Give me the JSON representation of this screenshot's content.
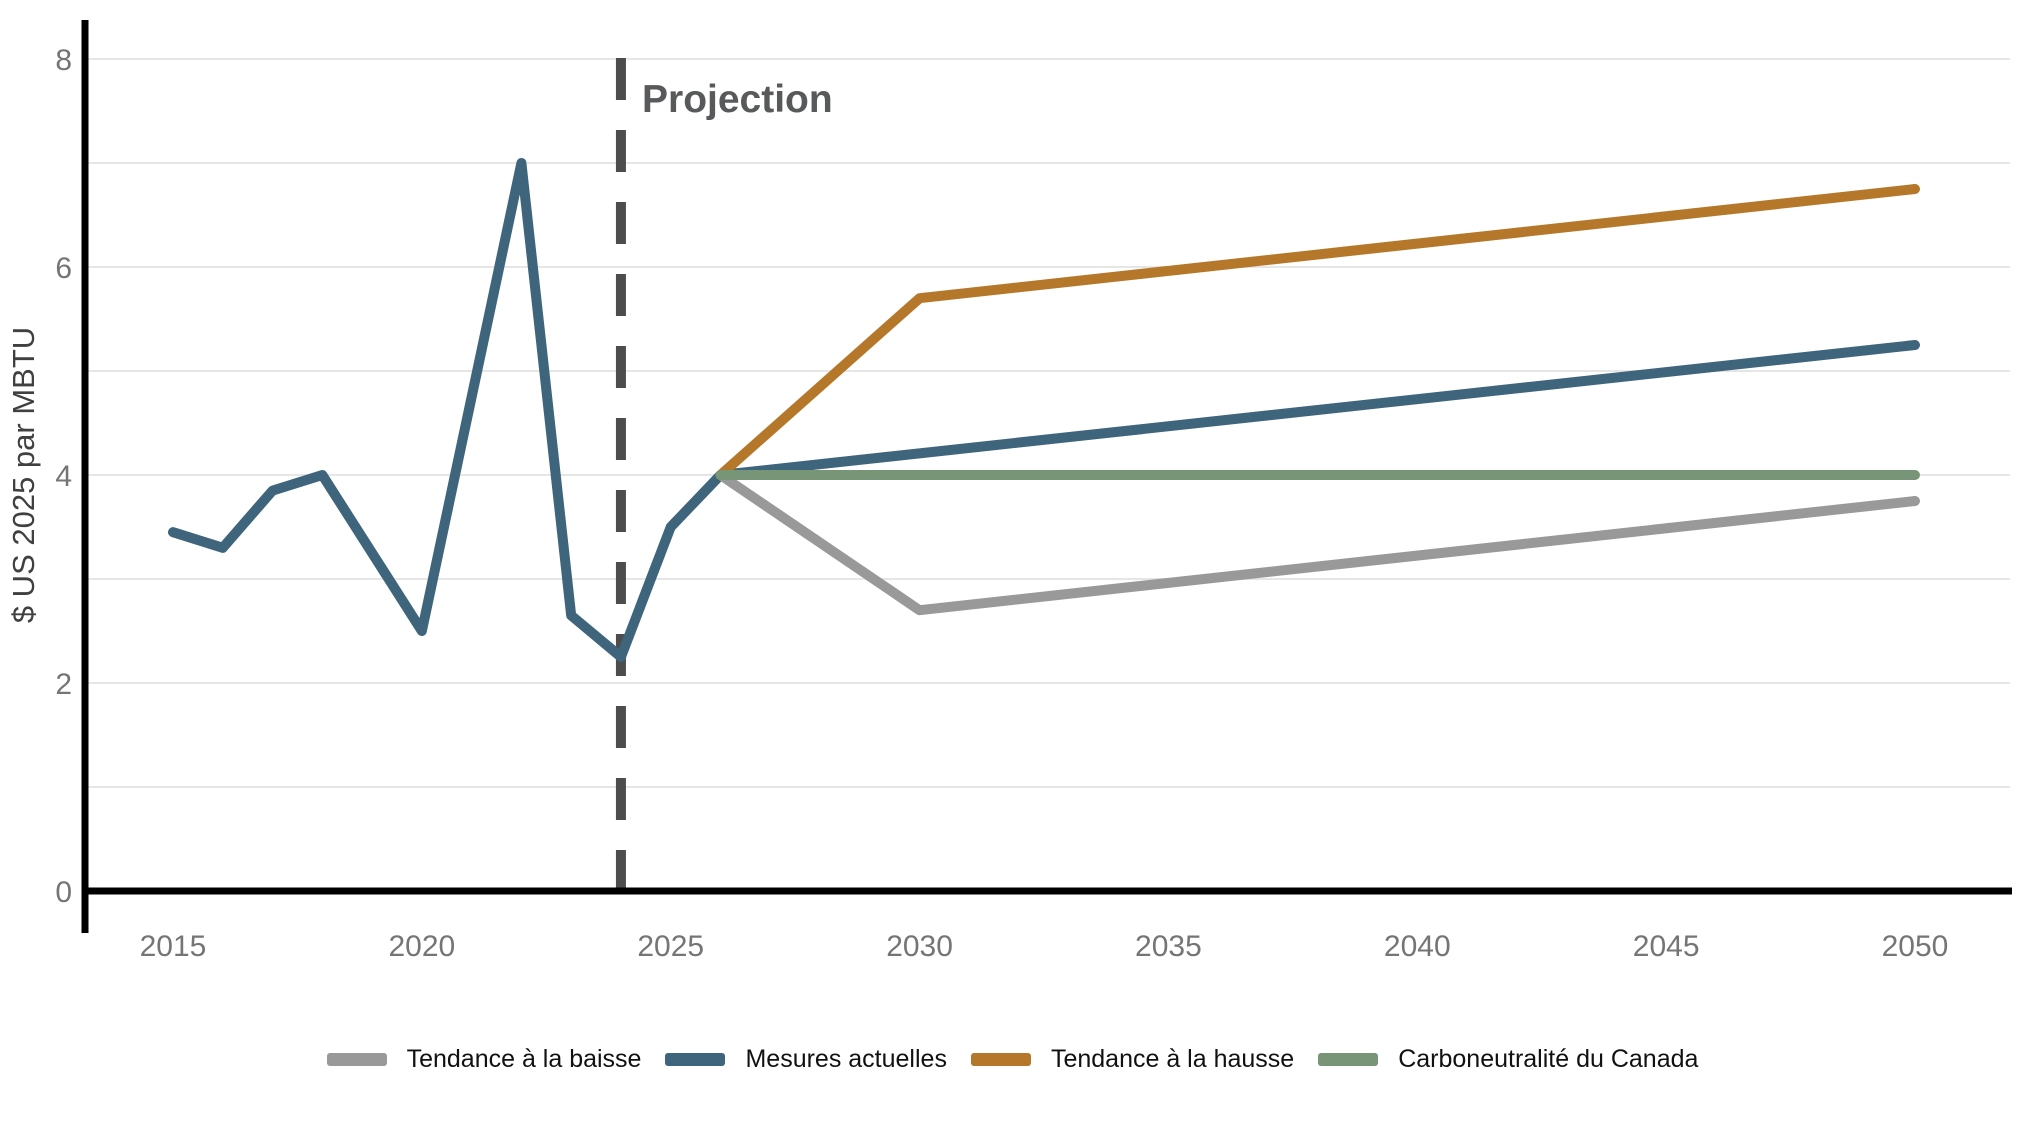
{
  "chart_data": {
    "type": "line",
    "title": "",
    "xlabel": "",
    "ylabel": "$ US 2025 par MBTU",
    "xlim": [
      2015,
      2050
    ],
    "ylim": [
      0,
      8.4
    ],
    "yticks": [
      0,
      2,
      4,
      6,
      8
    ],
    "xticks": [
      2015,
      2020,
      2025,
      2030,
      2035,
      2040,
      2045,
      2050
    ],
    "grid": "horizontal gridlines every 1 unit, light gray",
    "annotation": {
      "label": "Projection",
      "x": 2024,
      "style": "vertical dashed dark-gray line"
    },
    "series": [
      {
        "name": "Mesures actuelles (historique)",
        "color": "#3E657B",
        "points": [
          [
            2015,
            3.45
          ],
          [
            2016,
            3.3
          ],
          [
            2017,
            3.85
          ],
          [
            2018,
            4.0
          ],
          [
            2020,
            2.5
          ],
          [
            2022,
            7.0
          ],
          [
            2023,
            2.65
          ],
          [
            2024,
            2.25
          ],
          [
            2025,
            3.5
          ],
          [
            2026,
            4.0
          ]
        ]
      },
      {
        "name": "Tendance à la baisse",
        "color": "#999999",
        "points": [
          [
            2026,
            4.0
          ],
          [
            2030,
            2.7
          ],
          [
            2050,
            3.75
          ]
        ]
      },
      {
        "name": "Mesures actuelles",
        "color": "#3E657B",
        "points": [
          [
            2026,
            4.0
          ],
          [
            2050,
            5.25
          ]
        ]
      },
      {
        "name": "Tendance à la hausse",
        "color": "#B5782B",
        "points": [
          [
            2026,
            4.0
          ],
          [
            2030,
            5.7
          ],
          [
            2050,
            6.75
          ]
        ]
      },
      {
        "name": "Carboneutralité du Canada",
        "color": "#789577",
        "points": [
          [
            2026,
            4.0
          ],
          [
            2050,
            4.0
          ]
        ]
      }
    ],
    "legend": {
      "position": "bottom center",
      "items": [
        {
          "label": "Tendance à la baisse",
          "color": "#999999"
        },
        {
          "label": "Mesures actuelles",
          "color": "#3E657B"
        },
        {
          "label": "Tendance à la hausse",
          "color": "#B5782B"
        },
        {
          "label": "Carboneutralité du Canada",
          "color": "#789577"
        }
      ]
    },
    "colors": {
      "gridline": "#E6E6E6",
      "axis": "#000000",
      "tick_label": "#757575",
      "axis_title": "#404040",
      "projection_divider": "#4D4D4D",
      "projection_label": "#58595B",
      "background": "#FFFFFF"
    }
  }
}
